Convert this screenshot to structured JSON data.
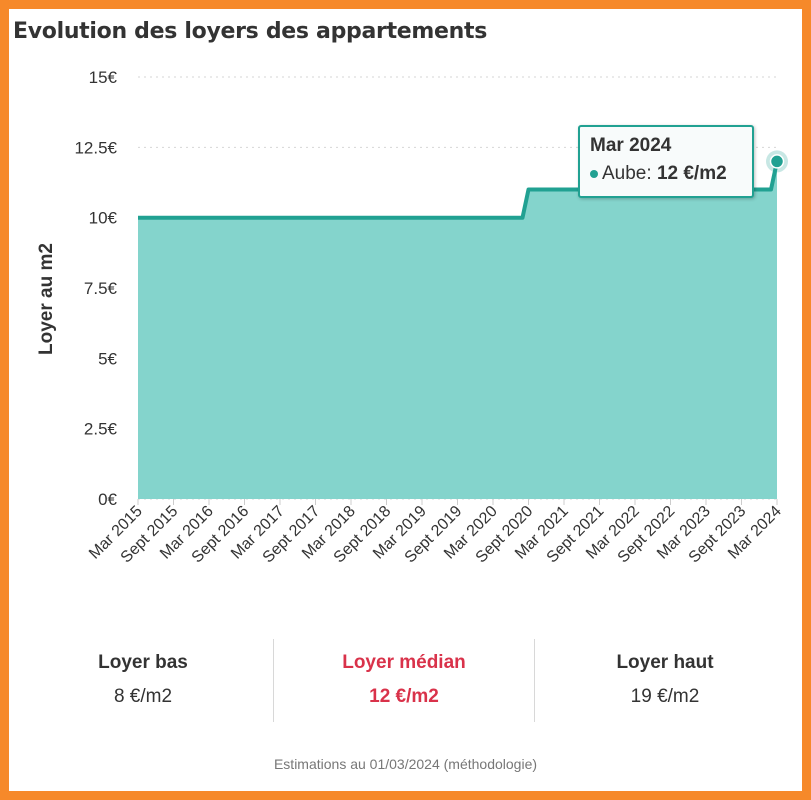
{
  "chart_data": {
    "type": "area",
    "title": "Evolution des loyers des appartements",
    "ylabel": "Loyer au m2",
    "xlabel": "",
    "categories": [
      "Mar 2015",
      "Sept 2015",
      "Mar 2016",
      "Sept 2016",
      "Mar 2017",
      "Sept 2017",
      "Mar 2018",
      "Sept 2018",
      "Mar 2019",
      "Sept 2019",
      "Mar 2020",
      "Sept 2020",
      "Mar 2021",
      "Sept 2021",
      "Mar 2022",
      "Sept 2022",
      "Mar 2023",
      "Sept 2023",
      "Mar 2024"
    ],
    "series": [
      {
        "name": "Aube",
        "values": [
          10,
          10,
          10,
          10,
          10,
          10,
          10,
          10,
          10,
          10,
          10,
          11,
          11,
          11,
          11,
          11,
          11,
          11,
          12
        ]
      }
    ],
    "ylim": [
      0,
      15
    ],
    "yticks": [
      0,
      2.5,
      5,
      7.5,
      10,
      12.5,
      15
    ],
    "ytick_labels": [
      "0€",
      "2.5€",
      "5€",
      "7.5€",
      "10€",
      "12.5€",
      "15€"
    ],
    "grid": true,
    "color": "#21a192",
    "fill_color": "#84d4cc"
  },
  "tooltip": {
    "date": "Mar 2024",
    "series_label": "Aube:",
    "value": "12 €/m2"
  },
  "stats": [
    {
      "label": "Loyer bas",
      "value": "8 €/m2"
    },
    {
      "label": "Loyer médian",
      "value": "12 €/m2",
      "highlight_color": "#d9324a"
    },
    {
      "label": "Loyer haut",
      "value": "19 €/m2"
    }
  ],
  "footnote": "Estimations au 01/03/2024 (méthodologie)",
  "colors": {
    "frame": "#f6892a",
    "accent": "#21a192",
    "median": "#d9324a"
  }
}
